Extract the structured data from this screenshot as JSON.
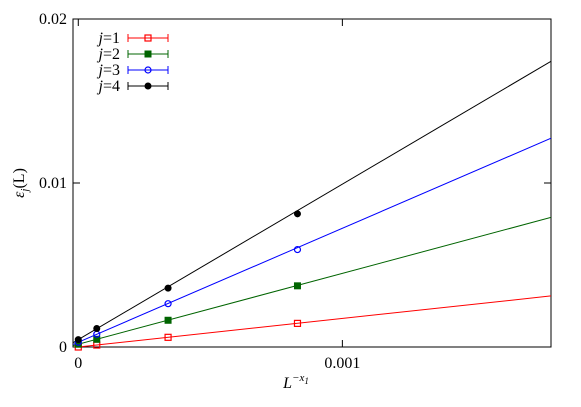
{
  "chart_data": {
    "type": "line",
    "xlabel": "L^-x1",
    "ylabel": "ε_j(L)",
    "xlim": [
      -2e-05,
      0.00179
    ],
    "ylim": [
      0,
      0.02
    ],
    "xticks": [
      {
        "value": 0,
        "label": "0"
      },
      {
        "value": 0.001,
        "label": "0.001"
      }
    ],
    "yticks": [
      {
        "value": 0,
        "label": "0"
      },
      {
        "value": 0.01,
        "label": "0.01"
      },
      {
        "value": 0.02,
        "label": "0.02"
      }
    ],
    "grid": false,
    "legend_position": "top-left",
    "series": [
      {
        "name": "j=1",
        "color": "#ff0000",
        "marker": "open-square",
        "x": [
          0.0,
          7e-05,
          0.00034,
          0.00083
        ],
        "y": [
          0.0,
          0.00012,
          0.00059,
          0.00144
        ],
        "fit": {
          "slope": 1.74,
          "intercept": 0.0
        }
      },
      {
        "name": "j=2",
        "color": "#006400",
        "marker": "filled-square",
        "x": [
          0.0,
          7e-05,
          0.00034,
          0.00083
        ],
        "y": [
          0.00017,
          0.00047,
          0.00163,
          0.00373
        ],
        "fit": {
          "slope": 4.32,
          "intercept": 0.00017
        }
      },
      {
        "name": "j=3",
        "color": "#0000ff",
        "marker": "open-circle",
        "x": [
          0.0,
          7e-05,
          0.00034,
          0.00083
        ],
        "y": [
          0.00029,
          0.00078,
          0.00264,
          0.00594
        ],
        "fit": {
          "slope": 6.95,
          "intercept": 0.00029
        }
      },
      {
        "name": "j=4",
        "color": "#000000",
        "marker": "filled-circle",
        "x": [
          0.0,
          7e-05,
          0.00034,
          0.00083
        ],
        "y": [
          0.00045,
          0.00113,
          0.00359,
          0.00812
        ],
        "fit": {
          "slope": 9.48,
          "intercept": 0.00045
        }
      }
    ]
  }
}
